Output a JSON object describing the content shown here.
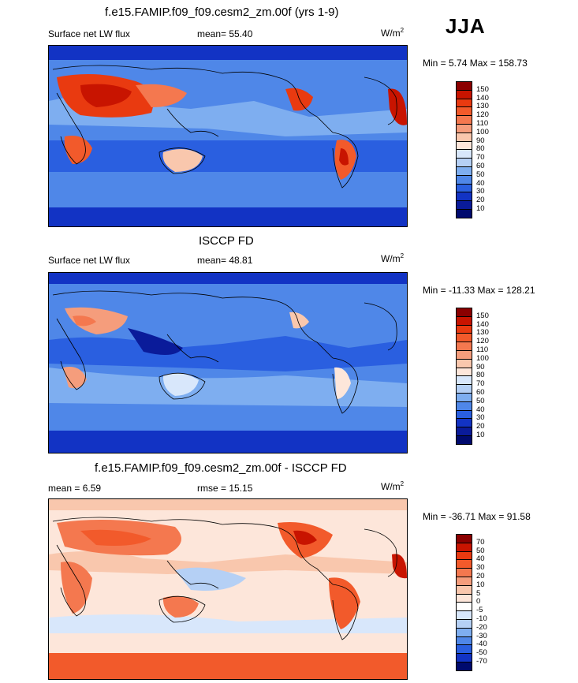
{
  "season": "JJA",
  "panels": [
    {
      "title": "f.e15.FAMIP.f09_f09.cesm2_zm.00f (yrs 1-9)",
      "left_label": "Surface net LW flux",
      "center_prefix": "mean=",
      "center_value": "55.40",
      "units_base": "W/m",
      "units_sup": "2",
      "minmax": "Min =   5.74 Max = 158.73",
      "palette": "abs",
      "levels": [
        "150",
        "140",
        "130",
        "120",
        "110",
        "100",
        "90",
        "80",
        "70",
        "60",
        "50",
        "40",
        "30",
        "20",
        "10"
      ],
      "colors": [
        "#8b0000",
        "#c81400",
        "#e93a10",
        "#f25a2b",
        "#f4784f",
        "#f59d7c",
        "#f9c7ad",
        "#fde6da",
        "#d8e7fb",
        "#b5d0f5",
        "#7eaef0",
        "#4f87e8",
        "#2a5fe0",
        "#1233c4",
        "#0a1b9a",
        "#000a6e"
      ]
    },
    {
      "title": "ISCCP FD",
      "left_label": "Surface net LW flux",
      "center_prefix": "mean=",
      "center_value": "48.81",
      "units_base": "W/m",
      "units_sup": "2",
      "minmax": "Min = -11.33 Max = 128.21",
      "palette": "abs",
      "levels": [
        "150",
        "140",
        "130",
        "120",
        "110",
        "100",
        "90",
        "80",
        "70",
        "60",
        "50",
        "40",
        "30",
        "20",
        "10"
      ],
      "colors": [
        "#8b0000",
        "#c81400",
        "#e93a10",
        "#f25a2b",
        "#f4784f",
        "#f59d7c",
        "#f9c7ad",
        "#fde6da",
        "#d8e7fb",
        "#b5d0f5",
        "#7eaef0",
        "#4f87e8",
        "#2a5fe0",
        "#1233c4",
        "#0a1b9a",
        "#000a6e"
      ]
    },
    {
      "title": "f.e15.FAMIP.f09_f09.cesm2_zm.00f - ISCCP FD",
      "left_label": "mean =   6.59",
      "center_prefix": "rmse =",
      "center_value": "15.15",
      "units_base": "W/m",
      "units_sup": "2",
      "minmax": "Min = -36.71 Max =  91.58",
      "palette": "diff",
      "levels": [
        "70",
        "50",
        "40",
        "30",
        "20",
        "10",
        "5",
        "0",
        "-5",
        "-10",
        "-20",
        "-30",
        "-40",
        "-50",
        "-70"
      ],
      "colors": [
        "#8b0000",
        "#c81400",
        "#e93a10",
        "#f25a2b",
        "#f4784f",
        "#f59d7c",
        "#f9c7ad",
        "#fde6da",
        "#ffffff",
        "#d8e7fb",
        "#b5d0f5",
        "#7eaef0",
        "#4f87e8",
        "#2a5fe0",
        "#1233c4",
        "#000a6e"
      ]
    }
  ]
}
